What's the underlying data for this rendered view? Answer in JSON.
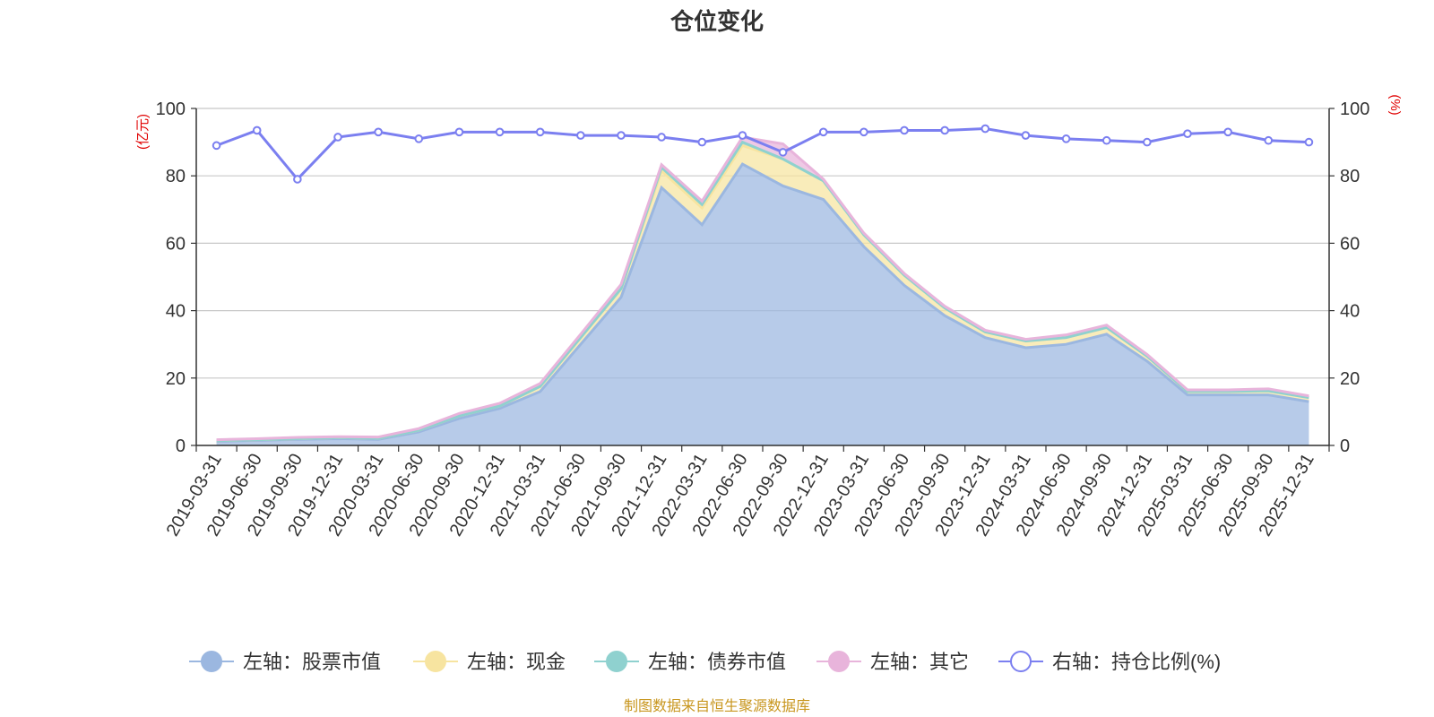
{
  "chart_data": {
    "type": "area",
    "title": "仓位变化",
    "left_axis": {
      "unit": "(亿元)",
      "range": [
        0,
        100
      ],
      "ticks": [
        0,
        20,
        40,
        60,
        80,
        100
      ]
    },
    "right_axis": {
      "unit": "(%)",
      "range": [
        0,
        100
      ],
      "ticks": [
        0,
        20,
        40,
        60,
        80,
        100
      ]
    },
    "categories": [
      "2019-03-31",
      "2019-06-30",
      "2019-09-30",
      "2019-12-31",
      "2020-03-31",
      "2020-06-30",
      "2020-09-30",
      "2020-12-31",
      "2021-03-31",
      "2021-06-30",
      "2021-09-30",
      "2021-12-31",
      "2022-03-31",
      "2022-06-30",
      "2022-09-30",
      "2022-12-31",
      "2023-03-31",
      "2023-06-30",
      "2023-09-30",
      "2023-12-31",
      "2024-03-31",
      "2024-06-30",
      "2024-09-30",
      "2024-12-31",
      "2025-03-31",
      "2025-06-30",
      "2025-09-30",
      "2025-12-31"
    ],
    "series": [
      {
        "name": "左轴：股票市值",
        "axis": "left",
        "type": "area",
        "color": "#9bb7e0",
        "values": [
          1.2,
          1.5,
          1.8,
          2.0,
          1.8,
          4.0,
          8.0,
          11.0,
          16.0,
          30.0,
          44.0,
          76.5,
          65.5,
          83.5,
          77.0,
          73.0,
          59.0,
          47.5,
          38.5,
          32.0,
          29.0,
          30.0,
          33.0,
          25.0,
          15.0,
          15.0,
          15.0,
          13.0
        ]
      },
      {
        "name": "左轴：现金",
        "axis": "left",
        "type": "area",
        "color": "#f7e4a0",
        "values": [
          0.2,
          0.2,
          0.2,
          0.3,
          0.3,
          0.5,
          0.8,
          0.7,
          1.5,
          2.0,
          2.5,
          5.0,
          5.0,
          5.5,
          8.0,
          5.5,
          3.5,
          3.0,
          2.3,
          1.7,
          2.0,
          2.0,
          2.0,
          1.5,
          1.0,
          1.0,
          1.2,
          1.2
        ]
      },
      {
        "name": "左轴：债券市值",
        "axis": "left",
        "type": "area",
        "color": "#8fd1cf",
        "values": [
          0.0,
          0.0,
          0.0,
          0.0,
          0.0,
          0.0,
          0.0,
          0.0,
          0.0,
          0.0,
          0.0,
          1.0,
          1.0,
          1.0,
          0.0,
          0.0,
          0.0,
          0.0,
          0.0,
          0.0,
          0.0,
          0.0,
          0.0,
          0.0,
          0.0,
          0.0,
          0.0,
          0.0
        ]
      },
      {
        "name": "左轴：其它",
        "axis": "left",
        "type": "area",
        "color": "#e8b4db",
        "values": [
          0.3,
          0.3,
          0.4,
          0.3,
          0.4,
          0.5,
          0.7,
          0.8,
          0.9,
          1.0,
          1.3,
          0.8,
          1.0,
          1.5,
          4.5,
          0.5,
          0.5,
          0.5,
          0.5,
          0.5,
          0.5,
          0.8,
          0.7,
          0.5,
          0.5,
          0.5,
          0.6,
          0.5
        ]
      },
      {
        "name": "右轴：持仓比例(%)",
        "axis": "right",
        "type": "line",
        "color": "#7b7ff0",
        "values": [
          89.0,
          93.5,
          79.0,
          91.5,
          93.0,
          91.0,
          93.0,
          93.0,
          93.0,
          92.0,
          92.0,
          91.5,
          90.0,
          92.0,
          87.0,
          93.0,
          93.0,
          93.5,
          93.5,
          94.0,
          92.0,
          91.0,
          90.5,
          90.0,
          92.5,
          93.0,
          90.5,
          90.0
        ]
      }
    ]
  },
  "source_text": "制图数据来自恒生聚源数据库"
}
